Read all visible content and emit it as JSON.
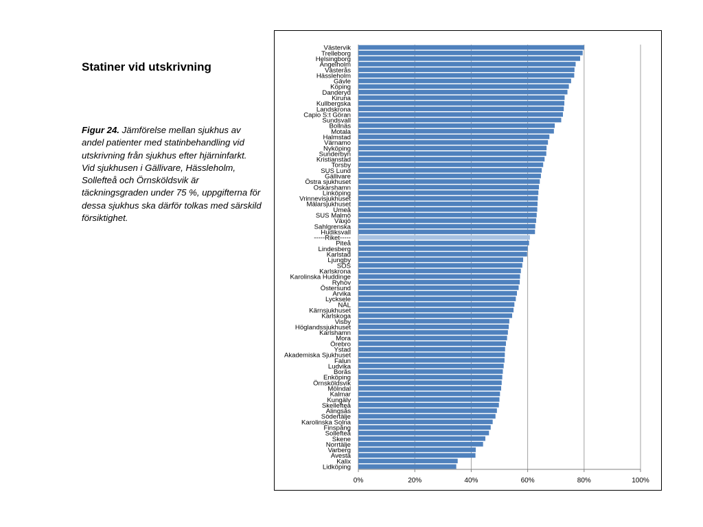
{
  "heading": "Statiner vid utskrivning",
  "caption": {
    "figure": "Figur 24.",
    "text": "Jämförelse mellan sjukhus av andel patienter med statinbehandling vid utskrivning från sjukhus efter hjärninfarkt. Vid sjukhusen i Gällivare, Hässleholm, Sollefteå och Örnsköldsvik är täckningsgraden under 75 %, uppgifterna för dessa sjukhus ska därför tolkas med särskild försiktighet."
  },
  "colors": {
    "bar": "#4f81bd",
    "highlight": "#a7c1e1",
    "grid": "#a0a0a0",
    "axis": "#808080"
  },
  "chart_data": {
    "type": "bar",
    "orientation": "horizontal",
    "x_ticks": [
      "0%",
      "20%",
      "40%",
      "60%",
      "80%",
      "100%"
    ],
    "xlim": [
      0,
      100
    ],
    "grid": true,
    "highlight_category": "-----Riket-----",
    "categories": [
      "Västervik",
      "Trelleborg",
      "Helsingborg",
      "Ängelholm",
      "Västerås",
      "Hässleholm",
      "Gävle",
      "Köping",
      "Danderyd",
      "Kiruna",
      "Kullbergska",
      "Landskrona",
      "Capio S:t Göran",
      "Sundsvall",
      "Bollnäs",
      "Motala",
      "Halmstad",
      "Värnamo",
      "Nyköping",
      "Sunderbyn",
      "Kristianstad",
      "Torsby",
      "SUS Lund",
      "Gällivare",
      "Östra sjukhuset",
      "Oskarshamn",
      "Linköping",
      "Vrinnevisjukhuset",
      "Mälarsjukhuset",
      "Umeå",
      "SUS Malmö",
      "Växjö",
      "Sahlgrenska",
      "Hudiksvall",
      "-----Riket-----",
      "Piteå",
      "Lindesberg",
      "Karlstad",
      "Ljungby",
      "SÖS",
      "Karlskrona",
      "Karolinska Huddinge",
      "Ryhov",
      "Östersund",
      "Arvika",
      "Lycksele",
      "NÄL",
      "Kärnsjukhuset",
      "Karlskoga",
      "Visby",
      "Höglandssjukhuset",
      "Karlshamn",
      "Mora",
      "Örebro",
      "Ystad",
      "Akademiska Sjukhuset",
      "Falun",
      "Ludvika",
      "Borås",
      "Enköping",
      "Örnsköldsvik",
      "Mölndal",
      "Kalmar",
      "Kungälv",
      "Skellefteå",
      "Alingsås",
      "Södertälje",
      "Karolinska Solna",
      "Finspång",
      "Sollefteå",
      "Skene",
      "Norrtälje",
      "Varberg",
      "Avesta",
      "Kalix",
      "Lidköping"
    ],
    "values": [
      80.0,
      79.5,
      78.6,
      77.0,
      76.6,
      76.5,
      75.4,
      74.6,
      74.1,
      73.1,
      73.0,
      72.8,
      72.5,
      71.9,
      69.6,
      69.3,
      67.7,
      67.2,
      66.7,
      66.6,
      66.0,
      65.5,
      65.0,
      64.7,
      64.3,
      64.0,
      63.8,
      63.6,
      63.5,
      63.4,
      63.2,
      63.0,
      62.7,
      62.6,
      60.8,
      60.5,
      60.0,
      59.8,
      58.4,
      58.1,
      57.6,
      57.3,
      57.2,
      56.8,
      56.2,
      55.8,
      55.3,
      55.0,
      54.5,
      53.5,
      53.3,
      53.0,
      52.7,
      52.3,
      52.0,
      51.9,
      51.8,
      51.5,
      51.2,
      51.0,
      50.8,
      50.6,
      50.2,
      50.0,
      49.8,
      49.1,
      48.6,
      47.6,
      46.9,
      46.3,
      45.0,
      44.2,
      41.6,
      41.5,
      35.2,
      34.7
    ]
  }
}
